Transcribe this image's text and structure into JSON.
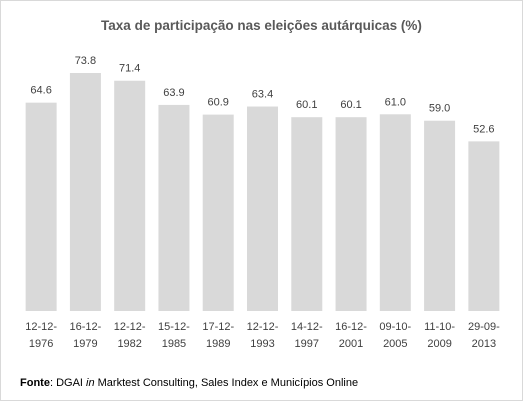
{
  "chart_data": {
    "type": "bar",
    "title": "Taxa de participação nas eleições autárquicas (%)",
    "categories": [
      [
        "12-12-",
        "1976"
      ],
      [
        "16-12-",
        "1979"
      ],
      [
        "12-12-",
        "1982"
      ],
      [
        "15-12-",
        "1985"
      ],
      [
        "17-12-",
        "1989"
      ],
      [
        "12-12-",
        "1993"
      ],
      [
        "14-12-",
        "1997"
      ],
      [
        "16-12-",
        "2001"
      ],
      [
        "09-10-",
        "2005"
      ],
      [
        "11-10-",
        "2009"
      ],
      [
        "29-09-",
        "2013"
      ]
    ],
    "values": [
      64.6,
      73.8,
      71.4,
      63.9,
      60.9,
      63.4,
      60.1,
      60.1,
      61.0,
      59.0,
      52.6
    ],
    "value_labels": [
      "64.6",
      "73.8",
      "71.4",
      "63.9",
      "60.9",
      "63.4",
      "60.1",
      "60.1",
      "61.0",
      "59.0",
      "52.6"
    ],
    "ylim": [
      0,
      80
    ],
    "grid": false,
    "bar_color": "#d9d9d9"
  },
  "source": {
    "label": "Fonte",
    "text_before": ": DGAI ",
    "italic": "in",
    "text_after": " Marktest Consulting, Sales Index e Municípios Online"
  }
}
